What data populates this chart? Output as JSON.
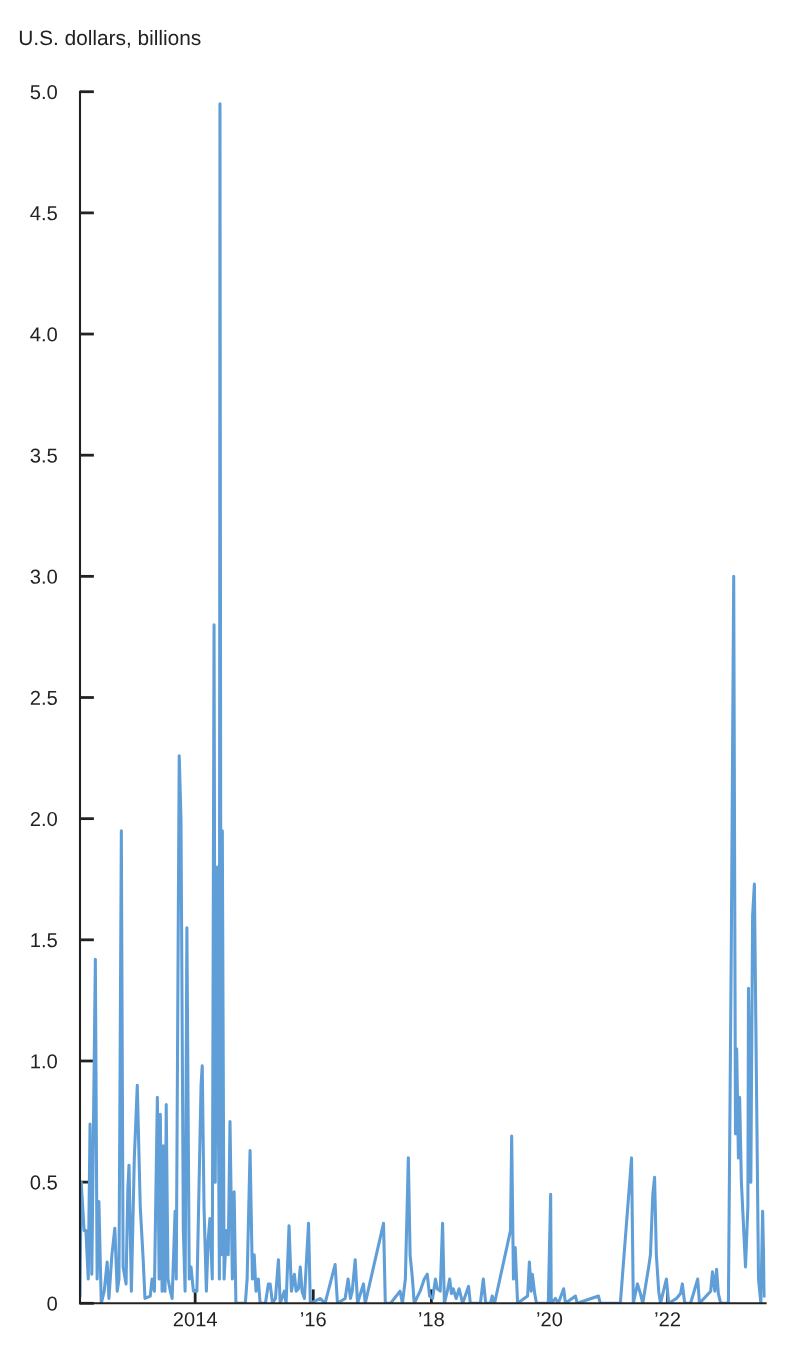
{
  "chart_data": {
    "type": "line",
    "ylabel": "U.S. dollars, billions",
    "grid": false,
    "legend": false,
    "marker": "none",
    "line_style": "solid",
    "xlim": [
      2012.05,
      2023.66
    ],
    "ylim": [
      0,
      5.0
    ],
    "xticks": [
      2014,
      {
        "value": 2016,
        "label": "’16"
      },
      {
        "value": 2018,
        "label": "’18"
      },
      {
        "value": 2020,
        "label": "’20"
      },
      {
        "value": 2022,
        "label": "’22"
      }
    ],
    "yticks": [
      0,
      0.5,
      {
        "value": 1.0,
        "label": "1.0"
      },
      1.5,
      {
        "value": 2.0,
        "label": "2.0"
      },
      2.5,
      {
        "value": 3.0,
        "label": "3.0"
      },
      3.5,
      {
        "value": 4.0,
        "label": "4.0"
      },
      4.5,
      {
        "value": 5.0,
        "label": "5.0"
      }
    ],
    "series": [
      {
        "color": "#5f9ed7",
        "x": [
          2012.05,
          2012.07,
          2012.12,
          2012.15,
          2012.19,
          2012.22,
          2012.25,
          2012.31,
          2012.34,
          2012.37,
          2012.41,
          2012.46,
          2012.51,
          2012.54,
          2012.59,
          2012.64,
          2012.68,
          2012.71,
          2012.75,
          2012.78,
          2012.83,
          2012.86,
          2012.88,
          2012.92,
          2012.97,
          2013.02,
          2013.07,
          2013.12,
          2013.15,
          2013.24,
          2013.27,
          2013.31,
          2013.36,
          2013.39,
          2013.41,
          2013.44,
          2013.46,
          2013.49,
          2013.51,
          2013.54,
          2013.58,
          2013.61,
          2013.66,
          2013.68,
          2013.73,
          2013.76,
          2013.8,
          2013.83,
          2013.86,
          2013.9,
          2013.93,
          2013.97,
          2014.03,
          2014.1,
          2014.12,
          2014.15,
          2014.19,
          2014.22,
          2014.25,
          2014.29,
          2014.32,
          2014.34,
          2014.37,
          2014.41,
          2014.42,
          2014.44,
          2014.46,
          2014.49,
          2014.53,
          2014.56,
          2014.59,
          2014.63,
          2014.66,
          2014.69,
          2014.85,
          2014.88,
          2014.93,
          2014.97,
          2015.0,
          2015.03,
          2015.07,
          2015.1,
          2015.19,
          2015.24,
          2015.27,
          2015.31,
          2015.36,
          2015.41,
          2015.44,
          2015.51,
          2015.54,
          2015.59,
          2015.63,
          2015.68,
          2015.71,
          2015.75,
          2015.78,
          2015.81,
          2015.85,
          2015.92,
          2015.95,
          2016.12,
          2016.2,
          2016.37,
          2016.41,
          2016.54,
          2016.59,
          2016.63,
          2016.66,
          2016.71,
          2016.75,
          2016.85,
          2016.88,
          2017.19,
          2017.22,
          2017.31,
          2017.47,
          2017.51,
          2017.56,
          2017.61,
          2017.64,
          2017.68,
          2017.71,
          2017.81,
          2017.88,
          2017.93,
          2017.97,
          2018.02,
          2018.07,
          2018.1,
          2018.15,
          2018.19,
          2018.22,
          2018.27,
          2018.31,
          2018.34,
          2018.37,
          2018.42,
          2018.47,
          2018.53,
          2018.63,
          2018.66,
          2018.83,
          2018.88,
          2018.92,
          2019.0,
          2019.03,
          2019.07,
          2019.34,
          2019.36,
          2019.39,
          2019.42,
          2019.46,
          2019.63,
          2019.66,
          2019.69,
          2019.71,
          2019.75,
          2019.78,
          2019.98,
          2020.02,
          2020.03,
          2020.1,
          2020.15,
          2020.24,
          2020.27,
          2020.44,
          2020.47,
          2020.83,
          2020.86,
          2021.2,
          2021.39,
          2021.42,
          2021.49,
          2021.54,
          2021.58,
          2021.68,
          2021.71,
          2021.75,
          2021.78,
          2021.81,
          2021.85,
          2021.88,
          2021.98,
          2022.02,
          2022.15,
          2022.22,
          2022.25,
          2022.29,
          2022.39,
          2022.51,
          2022.54,
          2022.73,
          2022.76,
          2022.8,
          2022.83,
          2022.86,
          2022.9,
          2023.03,
          2023.08,
          2023.12,
          2023.15,
          2023.17,
          2023.2,
          2023.22,
          2023.25,
          2023.32,
          2023.36,
          2023.37,
          2023.41,
          2023.44,
          2023.47,
          2023.51,
          2023.54,
          2023.58,
          2023.61,
          2023.64
        ],
        "values": [
          0.03,
          0.5,
          0.3,
          0.3,
          0.1,
          0.74,
          0.12,
          1.42,
          0.1,
          0.42,
          0.0,
          0.05,
          0.17,
          0.02,
          0.2,
          0.31,
          0.05,
          0.1,
          1.95,
          0.15,
          0.08,
          0.47,
          0.57,
          0.05,
          0.6,
          0.9,
          0.4,
          0.18,
          0.02,
          0.03,
          0.1,
          0.05,
          0.85,
          0.1,
          0.78,
          0.05,
          0.65,
          0.05,
          0.82,
          0.1,
          0.05,
          0.02,
          0.38,
          0.1,
          2.26,
          2.0,
          0.3,
          0.05,
          1.55,
          0.1,
          0.15,
          0.05,
          0.05,
          0.9,
          0.98,
          0.4,
          0.05,
          0.26,
          0.35,
          0.1,
          2.8,
          0.5,
          1.8,
          0.1,
          4.95,
          0.2,
          1.95,
          0.1,
          0.3,
          0.2,
          0.75,
          0.1,
          0.46,
          0.0,
          0.0,
          0.1,
          0.63,
          0.1,
          0.2,
          0.05,
          0.1,
          0.0,
          0.0,
          0.08,
          0.08,
          0.0,
          0.02,
          0.18,
          0.0,
          0.05,
          0.0,
          0.32,
          0.05,
          0.12,
          0.05,
          0.06,
          0.15,
          0.05,
          0.02,
          0.33,
          0.0,
          0.02,
          0.0,
          0.16,
          0.0,
          0.02,
          0.1,
          0.02,
          0.05,
          0.18,
          0.0,
          0.08,
          0.0,
          0.33,
          0.0,
          0.0,
          0.05,
          0.0,
          0.1,
          0.6,
          0.2,
          0.1,
          0.0,
          0.05,
          0.1,
          0.12,
          0.03,
          0.02,
          0.1,
          0.06,
          0.05,
          0.33,
          0.0,
          0.05,
          0.1,
          0.04,
          0.06,
          0.02,
          0.06,
          0.0,
          0.07,
          0.0,
          0.0,
          0.1,
          0.0,
          0.0,
          0.03,
          0.0,
          0.3,
          0.69,
          0.1,
          0.23,
          0.0,
          0.03,
          0.17,
          0.05,
          0.12,
          0.04,
          0.0,
          0.0,
          0.45,
          0.0,
          0.02,
          0.0,
          0.06,
          0.0,
          0.03,
          0.0,
          0.03,
          0.0,
          0.0,
          0.6,
          0.0,
          0.08,
          0.04,
          0.0,
          0.15,
          0.2,
          0.45,
          0.52,
          0.2,
          0.05,
          0.0,
          0.1,
          0.0,
          0.02,
          0.04,
          0.08,
          0.0,
          0.0,
          0.1,
          0.0,
          0.05,
          0.13,
          0.05,
          0.14,
          0.04,
          0.0,
          0.0,
          1.5,
          3.0,
          0.7,
          1.05,
          0.6,
          0.85,
          0.5,
          0.15,
          0.4,
          1.3,
          0.5,
          1.6,
          1.73,
          0.8,
          0.1,
          0.0,
          0.38,
          0.03
        ]
      }
    ]
  }
}
